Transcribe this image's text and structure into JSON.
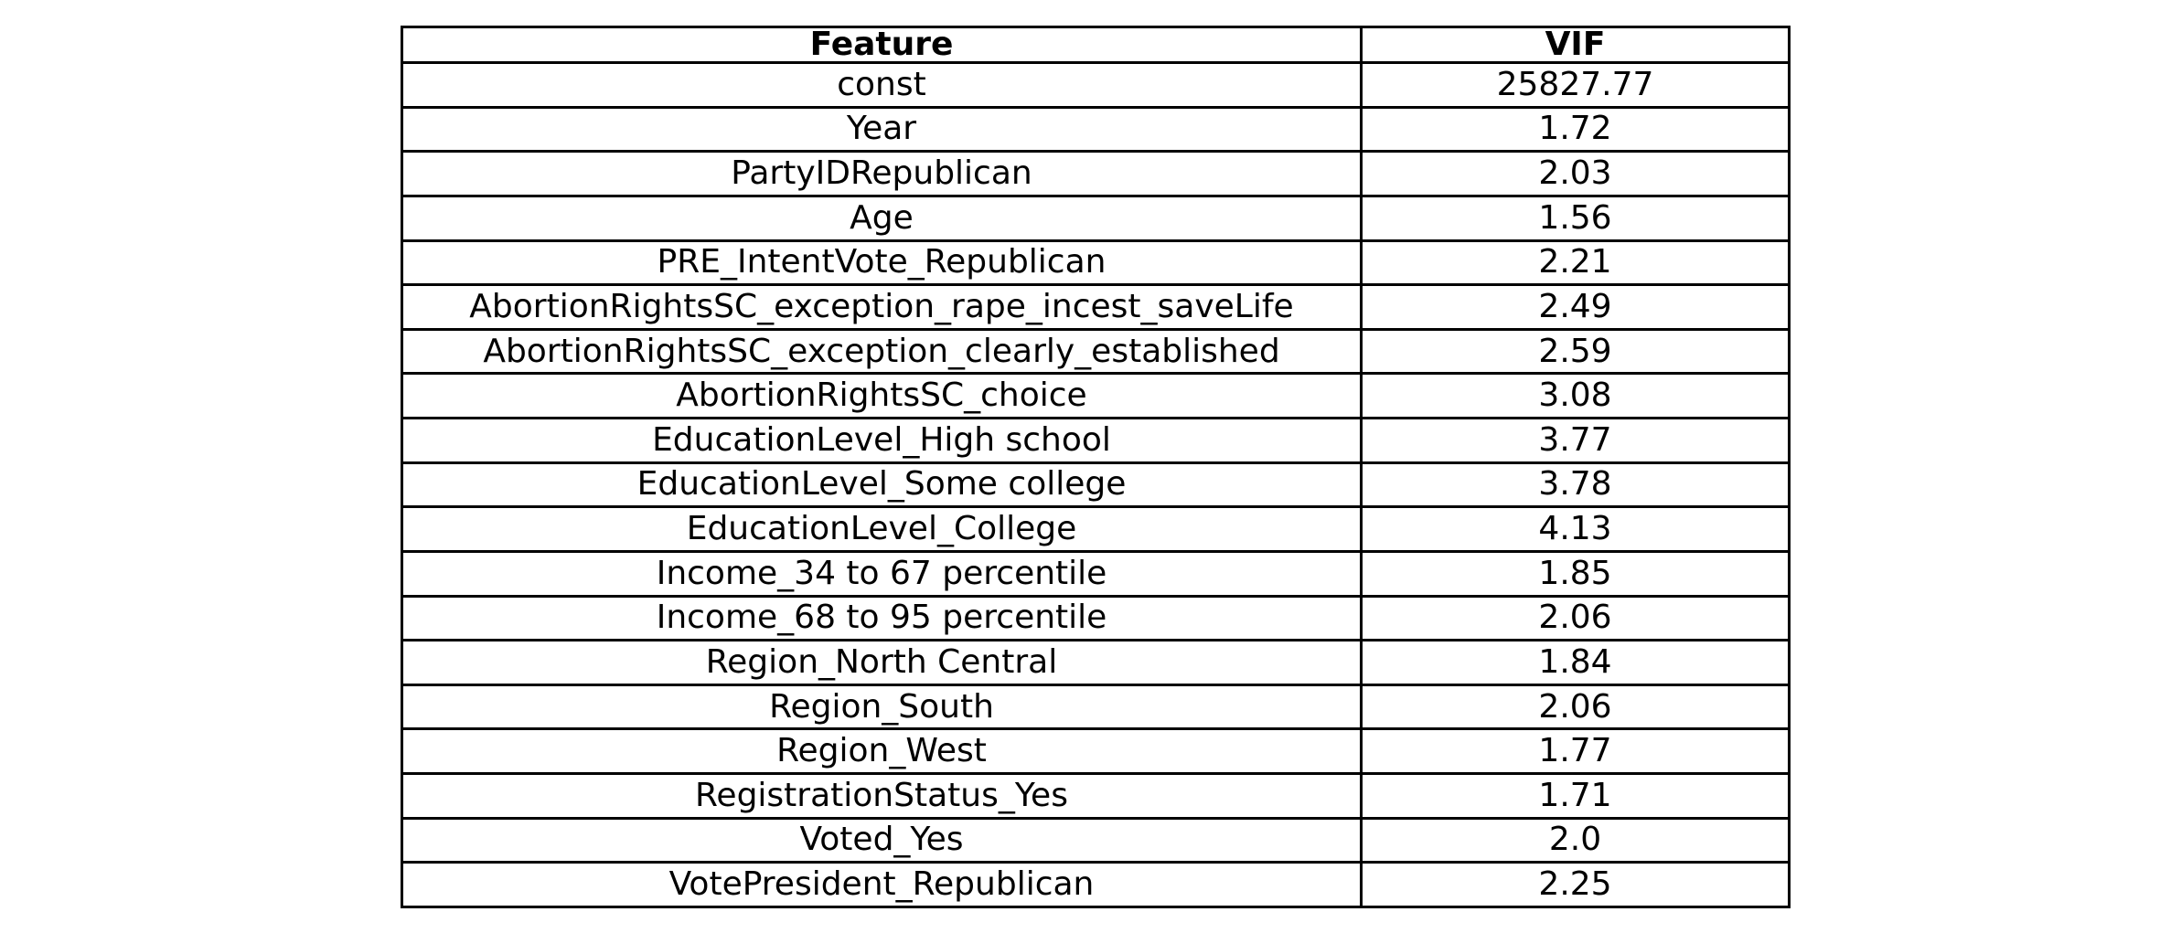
{
  "chart_data": {
    "type": "table",
    "columns": [
      "Feature",
      "VIF"
    ],
    "rows": [
      [
        "const",
        "25827.77"
      ],
      [
        "Year",
        "1.72"
      ],
      [
        "PartyIDRepublican",
        "2.03"
      ],
      [
        "Age",
        "1.56"
      ],
      [
        "PRE_IntentVote_Republican",
        "2.21"
      ],
      [
        "AbortionRightsSC_exception_rape_incest_saveLife",
        "2.49"
      ],
      [
        "AbortionRightsSC_exception_clearly_established",
        "2.59"
      ],
      [
        "AbortionRightsSC_choice",
        "3.08"
      ],
      [
        "EducationLevel_High school",
        "3.77"
      ],
      [
        "EducationLevel_Some college",
        "3.78"
      ],
      [
        "EducationLevel_College",
        "4.13"
      ],
      [
        "Income_34 to 67 percentile",
        "1.85"
      ],
      [
        "Income_68 to 95 percentile",
        "2.06"
      ],
      [
        "Region_North Central",
        "1.84"
      ],
      [
        "Region_South",
        "2.06"
      ],
      [
        "Region_West",
        "1.77"
      ],
      [
        "RegistrationStatus_Yes",
        "1.71"
      ],
      [
        "Voted_Yes",
        "2.0"
      ],
      [
        "VotePresident_Republican",
        "2.25"
      ]
    ]
  }
}
